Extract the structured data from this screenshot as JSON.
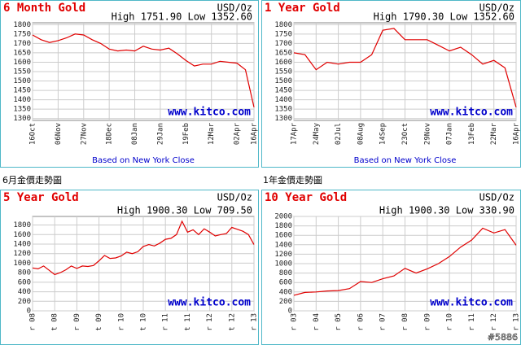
{
  "chart_data": [
    {
      "type": "line",
      "title": "6 Month Gold",
      "unit": "USD/Oz",
      "high_low": "High 1751.90 Low 1352.60",
      "source": "www.kitco.com",
      "note": "Based on New York Close",
      "color": "#e00000",
      "values": [
        1745,
        1720,
        1705,
        1715,
        1730,
        1750,
        1745,
        1720,
        1700,
        1670,
        1660,
        1665,
        1660,
        1685,
        1670,
        1665,
        1675,
        1645,
        1610,
        1580,
        1590,
        1590,
        1605,
        1600,
        1595,
        1560,
        1360
      ],
      "xlim": [
        0,
        26
      ],
      "xticks": [
        {
          "value": 0,
          "label": "16Oct"
        },
        {
          "value": 3,
          "label": "06Nov"
        },
        {
          "value": 6,
          "label": "27Nov"
        },
        {
          "value": 9,
          "label": "18Dec"
        },
        {
          "value": 12,
          "label": "08Jan"
        },
        {
          "value": 15,
          "label": "29Jan"
        },
        {
          "value": 18,
          "label": "19Feb"
        },
        {
          "value": 21,
          "label": "12Mar"
        },
        {
          "value": 24,
          "label": "02Apr"
        },
        {
          "value": 26,
          "label": "16Apr"
        }
      ],
      "ylim": [
        1290,
        1810
      ],
      "yticks": [
        1300,
        1350,
        1400,
        1450,
        1500,
        1550,
        1600,
        1650,
        1700,
        1750,
        1800
      ]
    },
    {
      "type": "line",
      "title": "1 Year Gold",
      "unit": "USD/Oz",
      "high_low": "High 1790.30 Low 1352.60",
      "source": "www.kitco.com",
      "note": "Based on New York Close",
      "color": "#e00000",
      "values": [
        1650,
        1640,
        1560,
        1600,
        1590,
        1600,
        1600,
        1640,
        1770,
        1780,
        1720,
        1720,
        1720,
        1690,
        1660,
        1680,
        1640,
        1590,
        1610,
        1570,
        1360
      ],
      "xlim": [
        0,
        20
      ],
      "xticks": [
        {
          "value": 0,
          "label": "17Apr"
        },
        {
          "value": 2,
          "label": "24May"
        },
        {
          "value": 4,
          "label": "02Jul"
        },
        {
          "value": 6,
          "label": "08Aug"
        },
        {
          "value": 8,
          "label": "14Sep"
        },
        {
          "value": 10,
          "label": "23Oct"
        },
        {
          "value": 12,
          "label": "29Nov"
        },
        {
          "value": 14,
          "label": "07Jan"
        },
        {
          "value": 16,
          "label": "13Feb"
        },
        {
          "value": 18,
          "label": "22Mar"
        },
        {
          "value": 20,
          "label": "16Apr"
        }
      ],
      "ylim": [
        1290,
        1810
      ],
      "yticks": [
        1300,
        1350,
        1400,
        1450,
        1500,
        1550,
        1600,
        1650,
        1700,
        1750,
        1800
      ]
    },
    {
      "type": "line",
      "title": "5 Year Gold",
      "unit": "USD/Oz",
      "high_low": "High 1900.30 Low 709.50",
      "source": "www.kitco.com",
      "color": "#e00000",
      "values": [
        900,
        880,
        940,
        850,
        760,
        800,
        860,
        940,
        890,
        940,
        930,
        950,
        1050,
        1160,
        1100,
        1110,
        1150,
        1230,
        1200,
        1240,
        1350,
        1390,
        1360,
        1420,
        1500,
        1520,
        1600,
        1880,
        1650,
        1700,
        1600,
        1720,
        1650,
        1570,
        1600,
        1620,
        1750,
        1710,
        1670,
        1600,
        1390
      ],
      "xlim": [
        0,
        40
      ],
      "xticks": [
        {
          "value": 0,
          "label": "r 08"
        },
        {
          "value": 4,
          "label": "t 08"
        },
        {
          "value": 8,
          "label": "r 09"
        },
        {
          "value": 12,
          "label": "t 09"
        },
        {
          "value": 16,
          "label": "r 10"
        },
        {
          "value": 20,
          "label": "t 10"
        },
        {
          "value": 24,
          "label": "r 11"
        },
        {
          "value": 28,
          "label": "t 11"
        },
        {
          "value": 32,
          "label": "r 12"
        },
        {
          "value": 36,
          "label": "t 12"
        },
        {
          "value": 40,
          "label": "r 13"
        }
      ],
      "ylim": [
        0,
        1980
      ],
      "yticks": [
        0,
        200,
        400,
        600,
        800,
        1000,
        1200,
        1400,
        1600,
        1800
      ]
    },
    {
      "type": "line",
      "title": "10 Year Gold",
      "unit": "USD/Oz",
      "high_low": "High 1900.30 Low 330.90",
      "source": "www.kitco.com",
      "color": "#e00000",
      "values": [
        330,
        390,
        400,
        420,
        430,
        470,
        620,
        600,
        680,
        740,
        900,
        800,
        890,
        1000,
        1150,
        1350,
        1500,
        1750,
        1650,
        1720,
        1390
      ],
      "xlim": [
        0,
        20
      ],
      "xticks": [
        {
          "value": 0,
          "label": "r 03"
        },
        {
          "value": 2,
          "label": "r 04"
        },
        {
          "value": 4,
          "label": "r 05"
        },
        {
          "value": 6,
          "label": "r 06"
        },
        {
          "value": 8,
          "label": "r 07"
        },
        {
          "value": 10,
          "label": "r 08"
        },
        {
          "value": 12,
          "label": "r 09"
        },
        {
          "value": 14,
          "label": "r 10"
        },
        {
          "value": 16,
          "label": "r 11"
        },
        {
          "value": 18,
          "label": "r 12"
        },
        {
          "value": 20,
          "label": "r 13"
        }
      ],
      "ylim": [
        0,
        2000
      ],
      "yticks": [
        0,
        200,
        400,
        600,
        800,
        1000,
        1200,
        1400,
        1600,
        1800,
        2000
      ]
    }
  ],
  "captions": [
    "6月金價走勢圖",
    "1年金價走勢圖"
  ],
  "watermark": "#5886"
}
